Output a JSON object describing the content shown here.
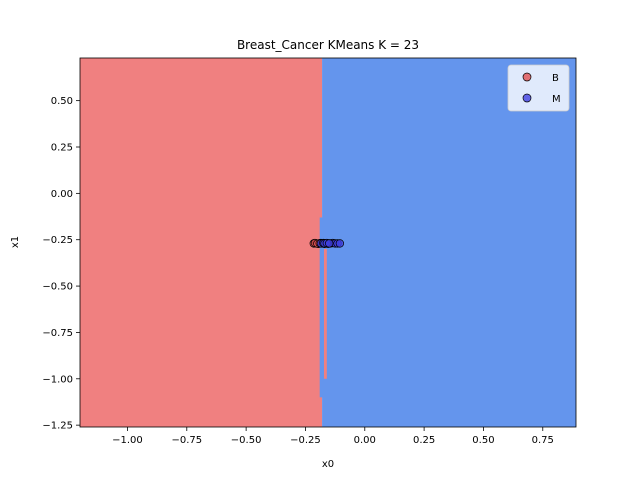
{
  "chart_data": {
    "type": "scatter",
    "title": "Breast_Cancer KMeans K = 23",
    "xlabel": "x0",
    "ylabel": "x1",
    "xlim": [
      -1.2,
      0.89
    ],
    "ylim": [
      -1.26,
      0.73
    ],
    "xticks": [
      -1.0,
      -0.75,
      -0.5,
      -0.25,
      0.0,
      0.25,
      0.5,
      0.75
    ],
    "xtick_labels": [
      "−1.00",
      "−0.75",
      "−0.50",
      "−0.25",
      "0.00",
      "0.25",
      "0.50",
      "0.75"
    ],
    "yticks": [
      0.5,
      0.25,
      0.0,
      -0.25,
      -0.5,
      -0.75,
      -1.0,
      -1.25
    ],
    "ytick_labels": [
      "0.50",
      "0.25",
      "0.00",
      "−0.25",
      "−0.50",
      "−0.75",
      "−1.00",
      "−1.25"
    ],
    "grid": false,
    "legend_position": "top-right",
    "decision_regions": [
      {
        "class": "B",
        "color": "#f08080",
        "x_range": [
          -1.2,
          -0.18
        ]
      },
      {
        "class": "M",
        "color": "#6495ed",
        "x_range": [
          -0.18,
          0.89
        ]
      }
    ],
    "series": [
      {
        "name": "B",
        "color": "#e05050",
        "points": [
          [
            -0.215,
            -0.27
          ],
          [
            -0.205,
            -0.27
          ],
          [
            -0.195,
            -0.272
          ],
          [
            -0.185,
            -0.268
          ],
          [
            -0.175,
            -0.27
          ],
          [
            -0.21,
            -0.268
          ],
          [
            -0.2,
            -0.271
          ],
          [
            -0.19,
            -0.269
          ],
          [
            -0.18,
            -0.27
          ],
          [
            -0.17,
            -0.272
          ]
        ]
      },
      {
        "name": "M",
        "color": "#4040e0",
        "points": [
          [
            -0.185,
            -0.27
          ],
          [
            -0.175,
            -0.268
          ],
          [
            -0.165,
            -0.27
          ],
          [
            -0.155,
            -0.272
          ],
          [
            -0.145,
            -0.27
          ],
          [
            -0.135,
            -0.268
          ],
          [
            -0.125,
            -0.27
          ],
          [
            -0.115,
            -0.27
          ],
          [
            -0.105,
            -0.27
          ],
          [
            -0.17,
            -0.27
          ],
          [
            -0.16,
            -0.268
          ],
          [
            -0.15,
            -0.27
          ]
        ]
      }
    ]
  }
}
